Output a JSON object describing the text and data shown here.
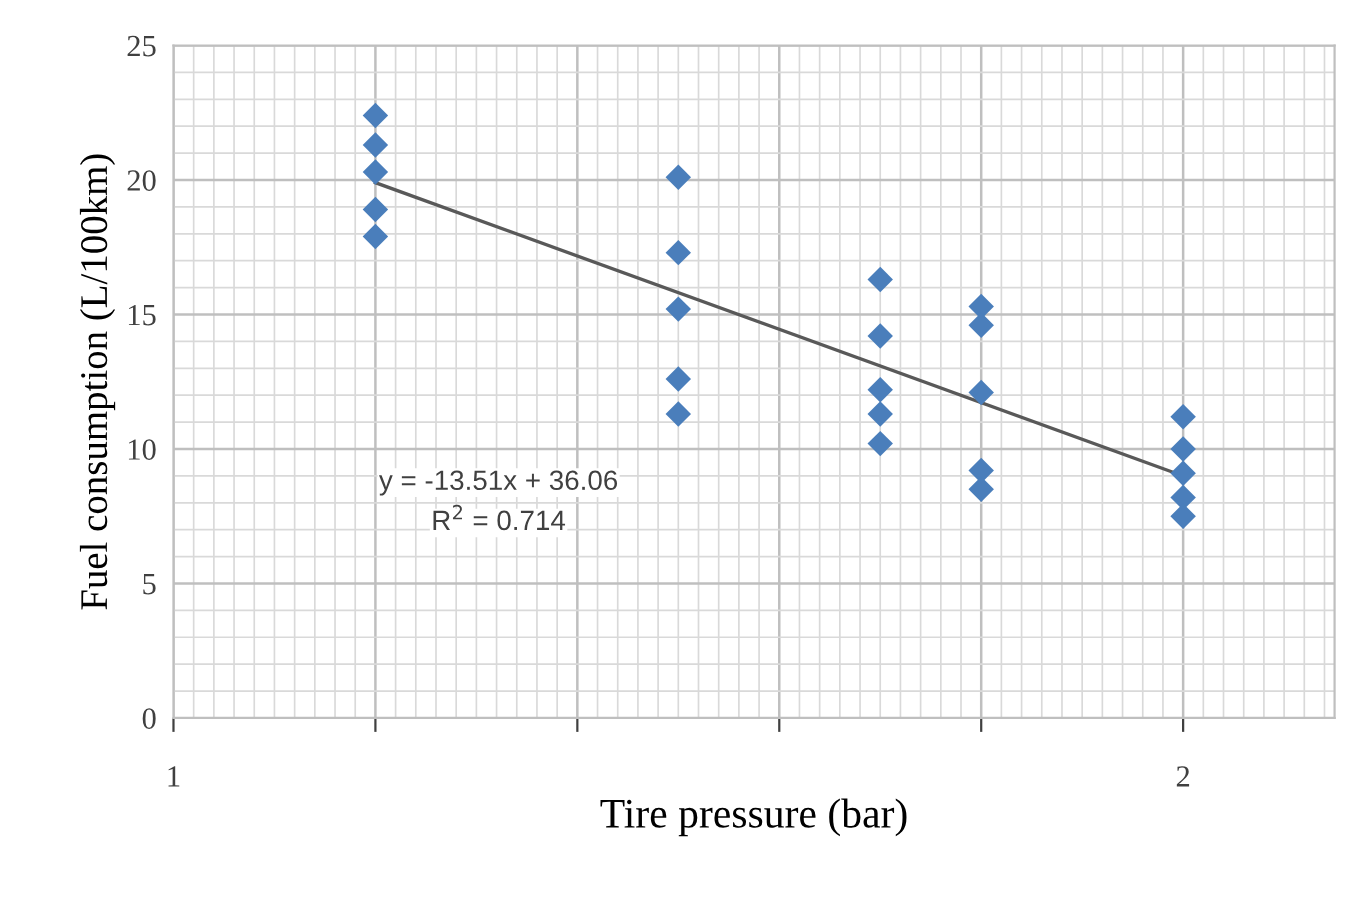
{
  "chart_data": {
    "type": "scatter",
    "xlabel": "Tire pressure (bar)",
    "ylabel": "Fuel consumption (L/100km)",
    "xlim": [
      1,
      2.15
    ],
    "xticks": [
      1,
      {
        "value": 1.2,
        "label": null
      },
      {
        "value": 1.4,
        "label": null
      },
      {
        "value": 1.6,
        "label": null
      },
      {
        "value": 1.8,
        "label": null
      },
      2
    ],
    "ylim": [
      0,
      25
    ],
    "yticks": [
      0,
      5,
      10,
      15,
      20,
      25
    ],
    "grid": true,
    "series": [
      {
        "marker": "diamond",
        "color": "#4a7ebb",
        "x": [
          1.2,
          1.2,
          1.2,
          1.2,
          1.2,
          1.5,
          1.5,
          1.5,
          1.5,
          1.5,
          1.7,
          1.7,
          1.7,
          1.7,
          1.7,
          1.8,
          1.8,
          1.8,
          1.8,
          1.8,
          2.0,
          2.0,
          2.0,
          2.0,
          2.0
        ],
        "values": [
          22.4,
          21.3,
          20.3,
          18.9,
          17.9,
          20.1,
          17.3,
          15.2,
          12.6,
          11.3,
          16.3,
          14.2,
          12.2,
          11.3,
          10.2,
          15.3,
          14.6,
          12.1,
          9.2,
          8.5,
          11.2,
          10.0,
          9.1,
          8.2,
          7.5
        ]
      },
      {
        "type": "line",
        "marker": "none",
        "color": "#595959",
        "x": [
          1.2,
          2.0
        ],
        "values": [
          19.9,
          9.0
        ]
      }
    ],
    "annotations": [
      "y = -13.51x + 36.06",
      "R$^{2}$ = 0.714"
    ]
  }
}
